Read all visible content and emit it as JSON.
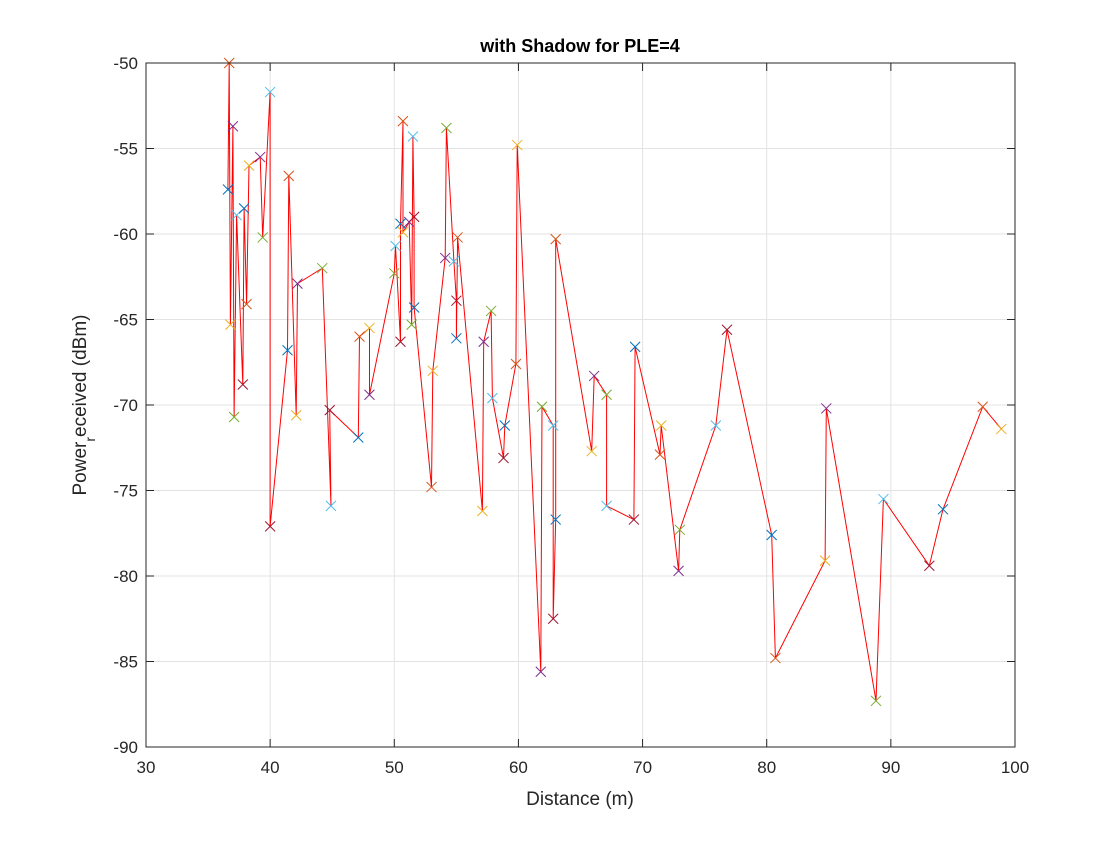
{
  "chart_data": {
    "type": "scatter",
    "title": "with Shadow for PLE=4",
    "xlabel": "Distance (m)",
    "ylabel_prefix": "Power",
    "ylabel_sub": "r",
    "ylabel_suffix": "eceived (dBm)",
    "xlim": [
      30,
      100
    ],
    "ylim": [
      -90,
      -50
    ],
    "xticks": [
      30,
      40,
      50,
      60,
      70,
      80,
      90,
      100
    ],
    "yticks": [
      -50,
      -55,
      -60,
      -65,
      -70,
      -75,
      -80,
      -85,
      -90
    ],
    "grid": true,
    "line_color": "#ff0000",
    "marker": "x",
    "marker_colors": [
      "#0072bd",
      "#d95319",
      "#edb120",
      "#7e2f8e",
      "#77ac30",
      "#4dbeee",
      "#a2142f"
    ],
    "x": [
      36.6,
      36.7,
      36.8,
      37.0,
      37.1,
      37.3,
      37.8,
      37.9,
      38.1,
      38.3,
      39.2,
      39.4,
      40.0,
      40.0,
      41.4,
      41.5,
      42.1,
      42.2,
      44.2,
      44.9,
      44.8,
      47.1,
      47.2,
      48.0,
      48.0,
      50.0,
      50.1,
      50.5,
      50.5,
      50.7,
      50.7,
      51.2,
      51.4,
      51.5,
      51.6,
      51.6,
      53.0,
      53.1,
      54.1,
      54.2,
      54.8,
      55.0,
      55.0,
      55.1,
      57.1,
      57.2,
      57.8,
      57.9,
      58.8,
      58.9,
      59.8,
      59.9,
      61.8,
      61.9,
      62.8,
      62.8,
      63.0,
      63.0,
      65.9,
      66.1,
      67.1,
      67.1,
      69.3,
      69.4,
      71.4,
      71.5,
      72.9,
      73.0,
      75.9,
      76.8,
      80.4,
      80.7,
      84.7,
      84.8,
      88.8,
      89.4,
      93.1,
      94.2,
      97.4,
      98.9
    ],
    "y": [
      -57.4,
      -50.0,
      -65.3,
      -53.7,
      -70.7,
      -58.9,
      -68.8,
      -58.5,
      -64.1,
      -56.0,
      -55.5,
      -60.2,
      -51.7,
      -77.1,
      -66.8,
      -56.6,
      -70.6,
      -62.9,
      -62.0,
      -75.9,
      -70.3,
      -71.9,
      -66.0,
      -65.5,
      -69.4,
      -62.3,
      -60.7,
      -66.3,
      -59.4,
      -53.4,
      -59.9,
      -59.3,
      -65.3,
      -54.3,
      -59.0,
      -64.3,
      -74.8,
      -68.0,
      -61.4,
      -53.8,
      -61.6,
      -63.9,
      -66.1,
      -60.2,
      -76.2,
      -66.3,
      -64.5,
      -69.6,
      -73.1,
      -71.2,
      -67.6,
      -54.8,
      -85.6,
      -70.1,
      -71.2,
      -82.5,
      -76.7,
      -60.3,
      -72.7,
      -68.3,
      -69.4,
      -75.9,
      -76.7,
      -66.6,
      -72.9,
      -71.2,
      -79.7,
      -77.3,
      -71.2,
      -65.6,
      -77.6,
      -84.8,
      -79.1,
      -70.2,
      -87.3,
      -75.5,
      -79.4,
      -76.1,
      -70.1,
      -71.4
    ]
  }
}
